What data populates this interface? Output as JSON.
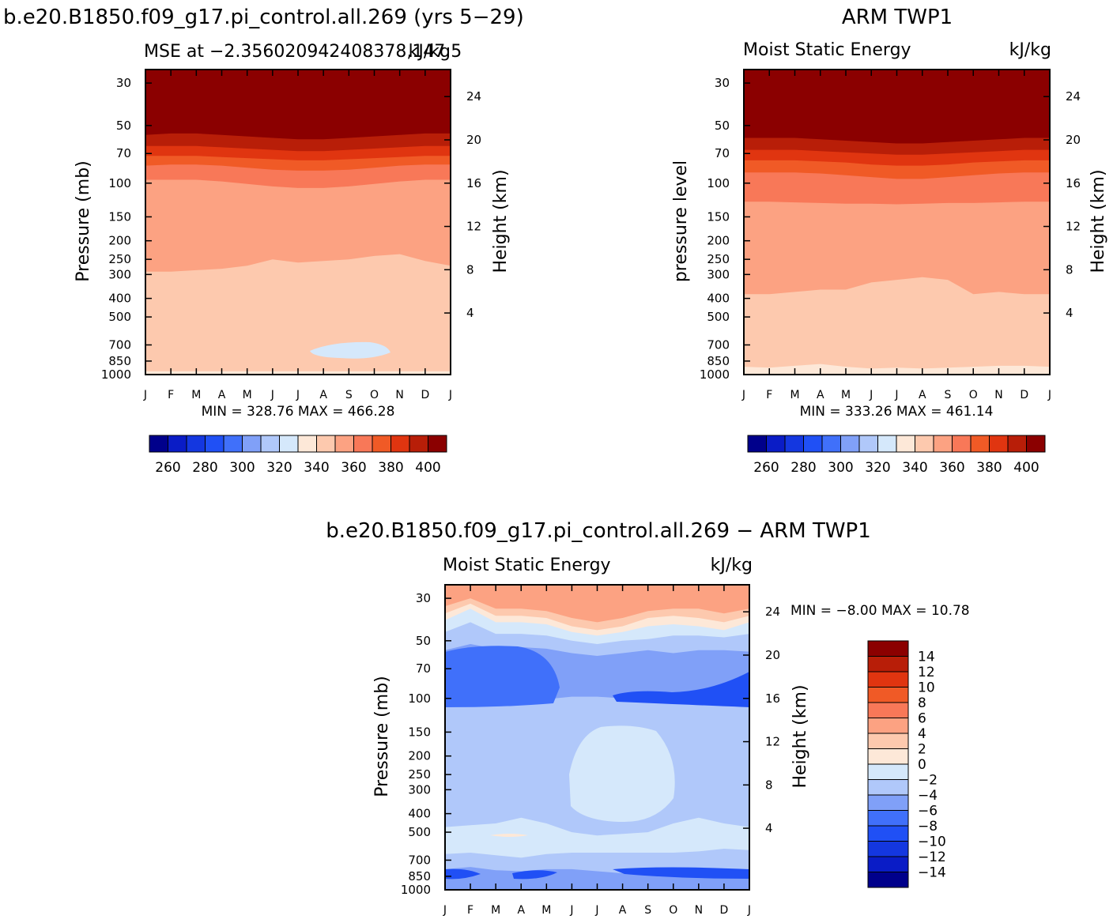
{
  "chart_data": [
    {
      "type": "heatmap",
      "id": "model",
      "main_title": "b.e20.B1850.f09_g17.pi_control.all.269 (yrs 5−29)",
      "subtitle_left": "MSE at −2.356020942408378,147.5",
      "subtitle_right": "kJ/kg",
      "ylabel": "Pressure (mb)",
      "y2label": "Height (km)",
      "x": [
        "J",
        "F",
        "M",
        "A",
        "M",
        "J",
        "J",
        "A",
        "S",
        "O",
        "N",
        "D",
        "J"
      ],
      "y_ticks": [
        "30",
        "50",
        "70",
        "100",
        "150",
        "200",
        "250",
        "300",
        "400",
        "500",
        "700",
        "850",
        "1000"
      ],
      "y2_ticks": [
        "24",
        "20",
        "16",
        "12",
        "8",
        "4"
      ],
      "min_max_text": "MIN =  328.76  MAX =  466.28",
      "contour_levels": [
        260,
        270,
        280,
        290,
        300,
        310,
        320,
        330,
        340,
        350,
        360,
        370,
        380,
        390,
        400
      ],
      "filled_bands": [
        {
          "name": ">400",
          "value": 405,
          "boundary_mb": [
            56,
            55,
            55,
            56,
            57,
            58,
            59,
            59,
            58,
            57,
            56,
            55,
            55
          ]
        },
        {
          "name": "390-400",
          "value": 395,
          "boundary_mb": [
            64,
            64,
            64,
            65,
            66,
            67,
            68,
            68,
            67,
            66,
            65,
            64,
            64
          ]
        },
        {
          "name": "380-390",
          "value": 385,
          "boundary_mb": [
            72,
            72,
            72,
            73,
            74,
            75,
            76,
            76,
            75,
            74,
            73,
            72,
            72
          ]
        },
        {
          "name": "370-380",
          "value": 375,
          "boundary_mb": [
            81,
            80,
            80,
            81,
            83,
            85,
            86,
            86,
            85,
            83,
            81,
            80,
            80
          ]
        },
        {
          "name": "360-370",
          "value": 365,
          "boundary_mb": [
            96,
            96,
            96,
            98,
            101,
            104,
            106,
            106,
            104,
            101,
            98,
            96,
            96
          ]
        },
        {
          "name": "350-360",
          "value": 355,
          "boundary_mb": [
            290,
            290,
            285,
            280,
            270,
            250,
            260,
            255,
            250,
            240,
            235,
            255,
            270
          ]
        },
        {
          "name": "340-350",
          "value": 345,
          "boundary_mb": [
            960,
            960,
            960,
            960,
            960,
            960,
            960,
            960,
            960,
            960,
            960,
            960,
            960
          ]
        },
        {
          "name": "330-340",
          "value": 335,
          "boundary_mb": [
            1000,
            1000,
            1000,
            1000,
            1000,
            1000,
            1000,
            1000,
            1000,
            1000,
            1000,
            1000,
            1000
          ]
        }
      ]
    },
    {
      "type": "heatmap",
      "id": "obs",
      "main_title": "ARM TWP1",
      "subtitle_left": "Moist Static Energy",
      "subtitle_right": "kJ/kg",
      "ylabel": "pressure level",
      "y2label": "Height (km)",
      "x": [
        "J",
        "F",
        "M",
        "A",
        "M",
        "J",
        "J",
        "A",
        "S",
        "O",
        "N",
        "D",
        "J"
      ],
      "y_ticks": [
        "30",
        "50",
        "70",
        "100",
        "150",
        "200",
        "250",
        "300",
        "400",
        "500",
        "700",
        "850",
        "1000"
      ],
      "y2_ticks": [
        "24",
        "20",
        "16",
        "12",
        "8",
        "4"
      ],
      "min_max_text": "MIN =  333.26  MAX =  461.14",
      "contour_levels": [
        260,
        270,
        280,
        290,
        300,
        310,
        320,
        330,
        340,
        350,
        360,
        370,
        380,
        390,
        400
      ],
      "filled_bands": [
        {
          "name": ">400",
          "value": 405,
          "boundary_mb": [
            58,
            58,
            58,
            59,
            60,
            61,
            62,
            62,
            61,
            60,
            59,
            58,
            58
          ]
        },
        {
          "name": "390-400",
          "value": 395,
          "boundary_mb": [
            67,
            67,
            67,
            68,
            69,
            70,
            71,
            71,
            70,
            69,
            68,
            67,
            67
          ]
        },
        {
          "name": "380-390",
          "value": 385,
          "boundary_mb": [
            76,
            76,
            76,
            77,
            78,
            80,
            81,
            81,
            80,
            78,
            77,
            76,
            76
          ]
        },
        {
          "name": "370-380",
          "value": 375,
          "boundary_mb": [
            88,
            88,
            88,
            89,
            91,
            93,
            95,
            95,
            93,
            91,
            89,
            88,
            88
          ]
        },
        {
          "name": "360-370",
          "value": 365,
          "boundary_mb": [
            125,
            125,
            126,
            127,
            128,
            128,
            129,
            128,
            127,
            127,
            126,
            125,
            125
          ]
        },
        {
          "name": "350-360",
          "value": 355,
          "boundary_mb": [
            380,
            380,
            370,
            360,
            360,
            330,
            320,
            310,
            320,
            380,
            370,
            380,
            380
          ]
        },
        {
          "name": "340-350",
          "value": 345,
          "boundary_mb": [
            910,
            920,
            900,
            880,
            910,
            930,
            920,
            930,
            920,
            910,
            900,
            900,
            910
          ]
        },
        {
          "name": "330-340",
          "value": 335,
          "boundary_mb": [
            1000,
            1000,
            1000,
            1000,
            1000,
            1000,
            1000,
            1000,
            1000,
            1000,
            1000,
            1000,
            1000
          ]
        }
      ]
    },
    {
      "type": "heatmap",
      "id": "diff",
      "main_title": "b.e20.B1850.f09_g17.pi_control.all.269 − ARM TWP1",
      "subtitle_left": "Moist Static Energy",
      "subtitle_right": "kJ/kg",
      "ylabel": "Pressure (mb)",
      "y2label": "Height (km)",
      "x": [
        "J",
        "F",
        "M",
        "A",
        "M",
        "J",
        "J",
        "A",
        "S",
        "O",
        "N",
        "D",
        "J"
      ],
      "y_ticks": [
        "30",
        "50",
        "70",
        "100",
        "150",
        "200",
        "250",
        "300",
        "400",
        "500",
        "700",
        "850",
        "1000"
      ],
      "y2_ticks": [
        "24",
        "20",
        "16",
        "12",
        "8",
        "4"
      ],
      "min_max_text": "MIN =    −8.00  MAX =    10.78",
      "contour_levels": [
        -14,
        -12,
        -10,
        -8,
        -6,
        -4,
        -2,
        0,
        2,
        4,
        6,
        8,
        10,
        12,
        14
      ],
      "filled_bands": [
        {
          "name": "6-8",
          "value": 7,
          "boundary_mb": [
            30,
            28,
            31,
            31,
            32,
            34,
            35,
            34,
            32,
            31,
            31,
            32,
            31
          ]
        },
        {
          "name": "4-6",
          "value": 5,
          "boundary_mb": [
            33,
            30,
            34,
            34,
            35,
            38,
            40,
            38,
            35,
            34,
            34,
            36,
            34
          ]
        },
        {
          "name": "2-4",
          "value": 3,
          "boundary_mb": [
            36,
            32,
            37,
            37,
            38,
            42,
            44,
            42,
            38,
            37,
            38,
            40,
            37
          ]
        },
        {
          "name": "0-2",
          "value": 1,
          "boundary_mb": [
            39,
            34,
            40,
            40,
            41,
            45,
            47,
            45,
            42,
            41,
            42,
            44,
            40
          ]
        },
        {
          "name": "-2-0",
          "value": -1,
          "boundary_mb": [
            45,
            40,
            46,
            46,
            47,
            50,
            52,
            50,
            49,
            47,
            47,
            48,
            46
          ]
        },
        {
          "name": "-4--2",
          "value": -3,
          "boundary_mb": [
            56,
            52,
            55,
            54,
            55,
            58,
            60,
            58,
            56,
            58,
            56,
            56,
            57
          ]
        },
        {
          "name": "-6--4",
          "value": -5,
          "boundary_mb": [
            120,
            118,
            118,
            120,
            122,
            125,
            127,
            125,
            122,
            120,
            123,
            124,
            122
          ]
        },
        {
          "name": "-8--6 (upper)",
          "value": -7,
          "boundary_mb": [
            104,
            103,
            102,
            101,
            101,
            98,
            98,
            100,
            100,
            98,
            94,
            98,
            100
          ]
        },
        {
          "name": "-4--2 (mid)",
          "value": -3,
          "boundary_mb": [
            470,
            460,
            450,
            420,
            450,
            500,
            520,
            510,
            500,
            450,
            420,
            450,
            470
          ]
        },
        {
          "name": "-2-0 (lower)",
          "value": -1,
          "boundary_mb": [
            650,
            640,
            660,
            680,
            650,
            640,
            640,
            640,
            640,
            640,
            630,
            610,
            620
          ]
        },
        {
          "name": "-4--2 (low)",
          "value": -3,
          "boundary_mb": [
            780,
            760,
            790,
            800,
            780,
            780,
            800,
            820,
            810,
            820,
            800,
            780,
            790
          ]
        },
        {
          "name": "-6--4 (low)",
          "value": -5,
          "boundary_mb": [
            940,
            950,
            950,
            940,
            950,
            950,
            950,
            950,
            950,
            960,
            950,
            950,
            950
          ]
        }
      ]
    }
  ],
  "colorbar_top": {
    "labels": [
      "260",
      "280",
      "300",
      "320",
      "340",
      "360",
      "380",
      "400"
    ],
    "colors": [
      "#00008b",
      "#0a1cc6",
      "#1437e0",
      "#2050f5",
      "#4070fa",
      "#80a0f8",
      "#b0c8fa",
      "#d5e8fb",
      "#fde8d8",
      "#fdc9ae",
      "#fca282",
      "#f87858",
      "#f05a26",
      "#e03510",
      "#b81e08",
      "#8b0000"
    ]
  },
  "colorbar_diff": {
    "labels": [
      "14",
      "12",
      "10",
      "8",
      "6",
      "4",
      "2",
      "0",
      "−2",
      "−4",
      "−6",
      "−8",
      "−10",
      "−12",
      "−14"
    ],
    "colors": [
      "#8b0000",
      "#b81e08",
      "#e03510",
      "#f05a26",
      "#f87858",
      "#fca282",
      "#fdc9ae",
      "#fde8d8",
      "#d5e8fb",
      "#b0c8fa",
      "#80a0f8",
      "#4070fa",
      "#2050f5",
      "#1437e0",
      "#0a1cc6",
      "#00008b"
    ]
  }
}
